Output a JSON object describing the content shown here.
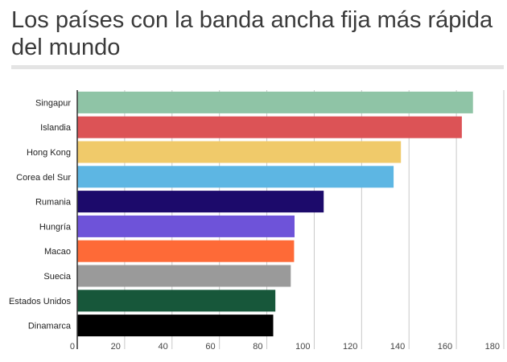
{
  "chart_data": {
    "type": "bar",
    "orientation": "horizontal",
    "title": "Los países con la banda ancha fija más rápida del mundo",
    "categories": [
      "Singapur",
      "Islandia",
      "Hong Kong",
      "Corea del Sur",
      "Rumania",
      "Hungría",
      "Macao",
      "Suecia",
      "Estados Unidos",
      "Dinamarca"
    ],
    "values": [
      167,
      162.3,
      136.6,
      133.5,
      104,
      91.7,
      91.5,
      90.1,
      83.6,
      82.7
    ],
    "colors": [
      "#8fc4a6",
      "#dc5356",
      "#f0ca6a",
      "#5db6e3",
      "#1c0a6b",
      "#6e53d9",
      "#fe6a37",
      "#9a9a9a",
      "#17573a",
      "#000000"
    ],
    "xlim": [
      0,
      180
    ],
    "xticks": [
      0,
      20,
      40,
      60,
      80,
      100,
      120,
      140,
      160,
      180
    ],
    "grid": true,
    "xlabel": "",
    "ylabel": ""
  }
}
